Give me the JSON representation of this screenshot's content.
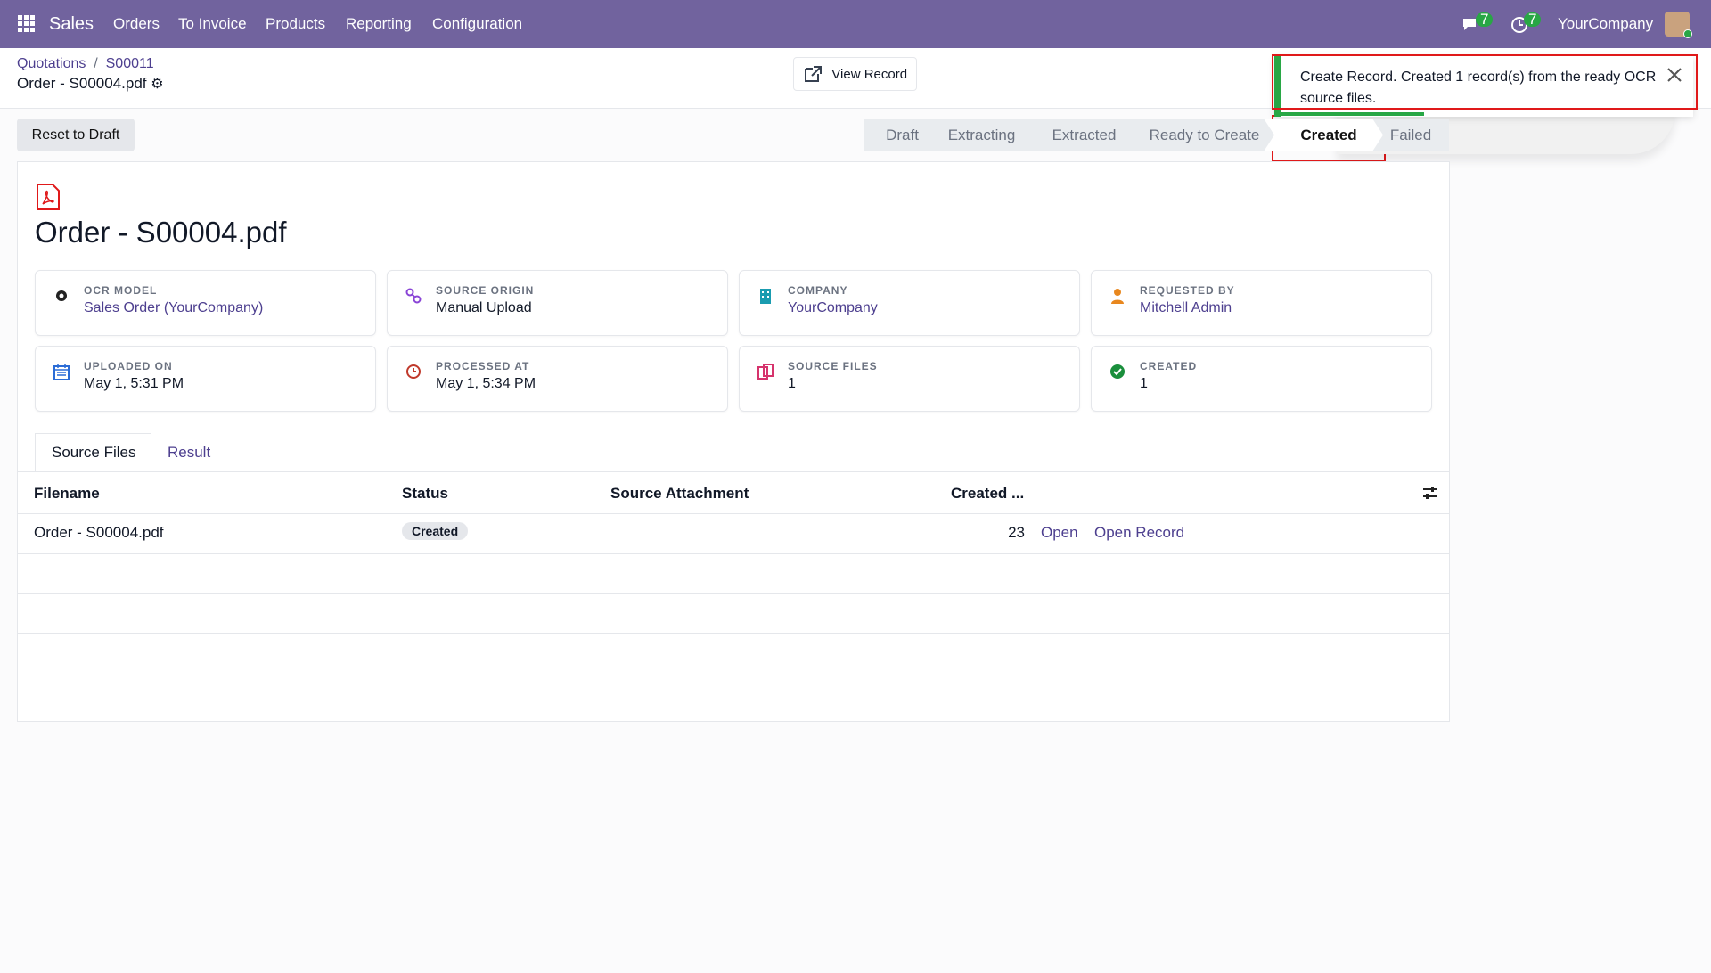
{
  "navbar": {
    "app": "Sales",
    "menu": [
      "Orders",
      "To Invoice",
      "Products",
      "Reporting",
      "Configuration"
    ],
    "messages_count": 7,
    "activities_count": 7,
    "company": "YourCompany"
  },
  "breadcrumb": {
    "parent": "Quotations",
    "separator": "/",
    "current": "S00011"
  },
  "record": {
    "name": "Order - S00004.pdf"
  },
  "buttons": {
    "view_record": "View Record",
    "reset": "Reset to Draft"
  },
  "statusbar": {
    "stages": [
      "Draft",
      "Extracting",
      "Extracted",
      "Ready to Create",
      "Created",
      "Failed"
    ],
    "active": 4
  },
  "notification": {
    "text": "Create Record. Created 1 record(s) from the ready OCR source files."
  },
  "fields": [
    {
      "label": "OCR MODEL",
      "value": "Sales Order (YourCompany)",
      "link": true,
      "icon": "gear"
    },
    {
      "label": "SOURCE ORIGIN",
      "value": "Manual Upload",
      "link": false,
      "icon": "link"
    },
    {
      "label": "COMPANY",
      "value": "YourCompany",
      "link": true,
      "icon": "building"
    },
    {
      "label": "REQUESTED BY",
      "value": "Mitchell Admin",
      "link": true,
      "icon": "user"
    },
    {
      "label": "UPLOADED ON",
      "value": "May 1, 5:31 PM",
      "link": false,
      "icon": "calendar"
    },
    {
      "label": "PROCESSED AT",
      "value": "May 1, 5:34 PM",
      "link": false,
      "icon": "clock"
    },
    {
      "label": "SOURCE FILES",
      "value": 1,
      "link": false,
      "icon": "files"
    },
    {
      "label": "CREATED",
      "value": 1,
      "link": false,
      "icon": "check"
    }
  ],
  "tabs": {
    "items": [
      "Source Files",
      "Result"
    ],
    "active": 0
  },
  "table": {
    "columns": [
      "Filename",
      "Status",
      "Source Attachment",
      "Created ..."
    ],
    "rows": [
      {
        "filename": "Order - S00004.pdf",
        "status": "Created",
        "created_id": 23,
        "open": "Open",
        "open_record": "Open Record"
      }
    ]
  }
}
